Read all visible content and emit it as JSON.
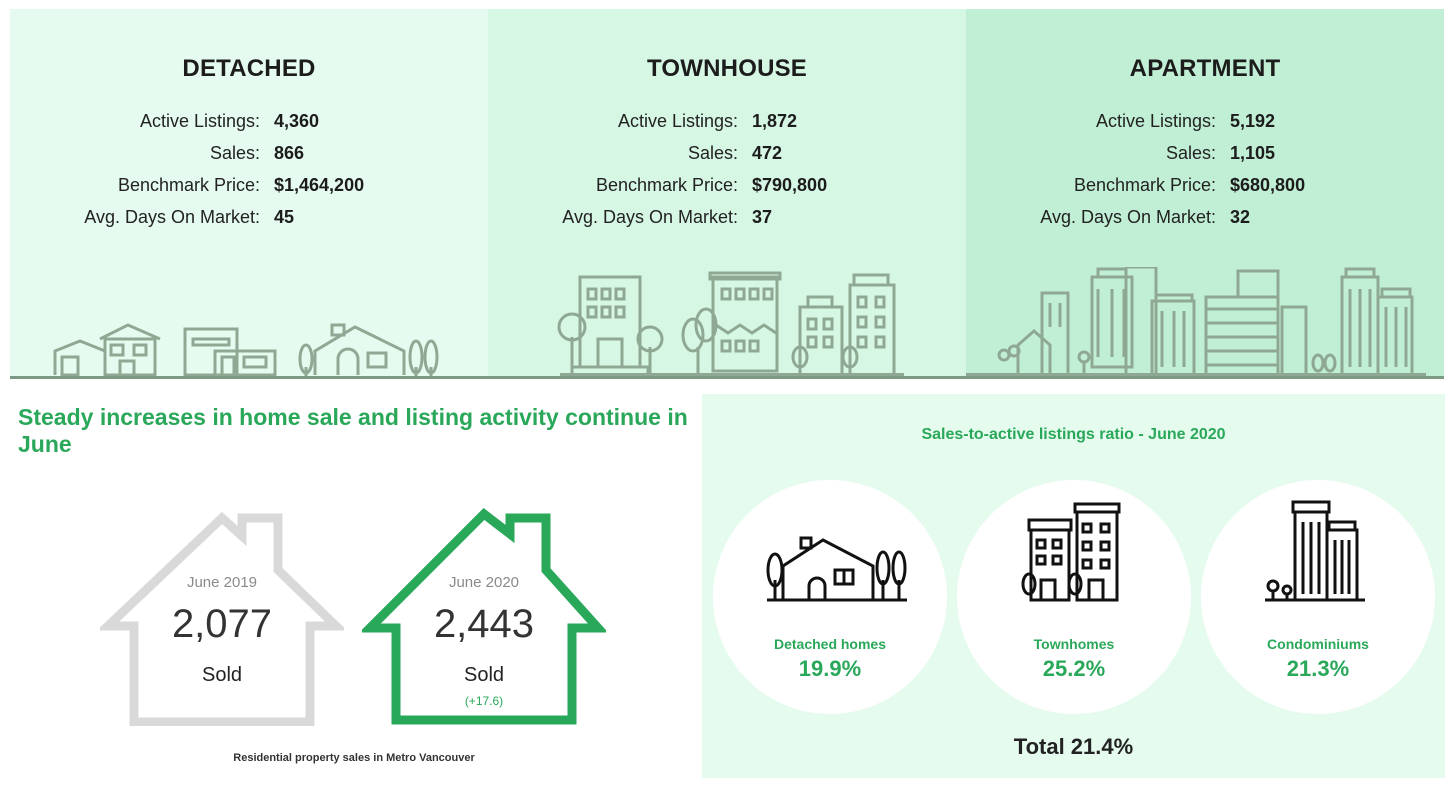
{
  "panels": [
    {
      "title": "DETACHED",
      "stats": [
        {
          "label": "Active Listings:",
          "value": "4,360"
        },
        {
          "label": "Sales:",
          "value": "866"
        },
        {
          "label": "Benchmark Price:",
          "value": "$1,464,200"
        },
        {
          "label": "Avg. Days On Market:",
          "value": "45"
        }
      ]
    },
    {
      "title": "TOWNHOUSE",
      "stats": [
        {
          "label": "Active Listings:",
          "value": "1,872"
        },
        {
          "label": "Sales:",
          "value": "472"
        },
        {
          "label": "Benchmark Price:",
          "value": "$790,800"
        },
        {
          "label": "Avg. Days On Market:",
          "value": "37"
        }
      ]
    },
    {
      "title": "APARTMENT",
      "stats": [
        {
          "label": "Active Listings:",
          "value": "5,192"
        },
        {
          "label": "Sales:",
          "value": "1,105"
        },
        {
          "label": "Benchmark Price:",
          "value": "$680,800"
        },
        {
          "label": "Avg. Days On Market:",
          "value": "32"
        }
      ]
    }
  ],
  "headline": "Steady increases in home sale and listing activity continue in June",
  "houses": [
    {
      "year": "June 2019",
      "number": "2,077",
      "sold": "Sold",
      "change": ""
    },
    {
      "year": "June 2020",
      "number": "2,443",
      "sold": "Sold",
      "change": "(+17.6)"
    }
  ],
  "caption": "Residential property sales in Metro Vancouver",
  "ratio": {
    "title": "Sales-to-active listings ratio - June 2020",
    "items": [
      {
        "label": "Detached homes",
        "value": "19.9%",
        "icon": "detached-house-icon"
      },
      {
        "label": "Townhomes",
        "value": "25.2%",
        "icon": "townhome-icon"
      },
      {
        "label": "Condominiums",
        "value": "21.3%",
        "icon": "condominium-icon"
      }
    ],
    "total": "Total 21.4%"
  },
  "colors": {
    "accent_green": "#2aa85a",
    "house_2019": "#d9d9d9",
    "house_2020": "#2aa85a",
    "skyline_stroke": "#8fa894"
  }
}
